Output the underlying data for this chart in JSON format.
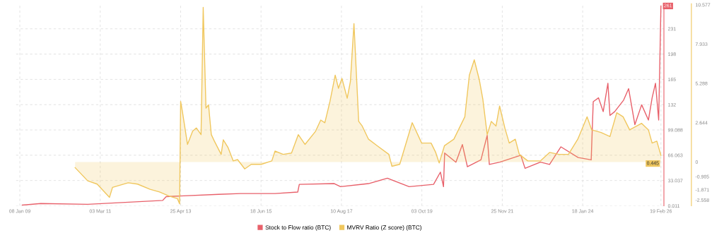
{
  "chart_data": {
    "type": "line",
    "xlim": [
      "2008-12-01",
      "2026-03-20"
    ],
    "xticks": [
      {
        "value": "2009-01-08",
        "label": "08 Jan 09"
      },
      {
        "value": "2011-03-03",
        "label": "03 Mar 11"
      },
      {
        "value": "2013-04-25",
        "label": "25 Apr 13"
      },
      {
        "value": "2015-06-18",
        "label": "18 Jun 15"
      },
      {
        "value": "2017-08-10",
        "label": "10 Aug 17"
      },
      {
        "value": "2019-10-03",
        "label": "03 Oct 19"
      },
      {
        "value": "2021-11-25",
        "label": "25 Nov 21"
      },
      {
        "value": "2024-01-18",
        "label": "18 Jan 24"
      },
      {
        "value": "2026-02-19",
        "label": "19 Feb 26"
      }
    ],
    "ylim": [
      0.011,
      264
    ],
    "yticks": [
      0.011,
      33.037,
      66.063,
      99.088,
      {
        "value": 132.114,
        "label": "132"
      },
      {
        "value": 165.14,
        "label": "165"
      },
      {
        "value": 198.166,
        "label": "198"
      },
      {
        "value": 231.191,
        "label": "231"
      }
    ],
    "y2lim": [
      -2.95,
      10.65
    ],
    "y2ticks": [
      -2.558,
      -1.871,
      -0.985,
      0,
      2.644,
      5.288,
      7.933,
      10.577
    ],
    "grid": true,
    "legend": "bottom",
    "series": [
      {
        "name": "Stock to Flow ratio (BTC)",
        "color": "#e8606a",
        "x": [
          "2009-02-01",
          "2009-08-01",
          "2010-11-01",
          "2012-11-01",
          "2012-12-05",
          "2014-05-01",
          "2014-12-01",
          "2015-11-01",
          "2016-06-10",
          "2016-06-25",
          "2017-06-01",
          "2017-08-01",
          "2018-05-01",
          "2018-11-01",
          "2019-06-01",
          "2020-01-25",
          "2020-04-01",
          "2020-05-01",
          "2020-05-12",
          "2020-08-30",
          "2020-11-01",
          "2020-12-20",
          "2021-05-01",
          "2021-07-01",
          "2021-07-22",
          "2021-11-01",
          "2022-05-25",
          "2022-07-05",
          "2022-12-01",
          "2023-03-01",
          "2023-06-20",
          "2023-12-05",
          "2024-04-10",
          "2024-04-30",
          "2024-06-20",
          "2024-08-05",
          "2024-09-20",
          "2024-10-10",
          "2024-11-25",
          "2025-02-20",
          "2025-04-10",
          "2025-06-10",
          "2025-08-15",
          "2025-10-20",
          "2025-11-25",
          "2025-12-28",
          "2026-01-28",
          "2026-02-19"
        ],
        "values": [
          1,
          3,
          2,
          7,
          12,
          15,
          16,
          16,
          18,
          28,
          29,
          25,
          29,
          36,
          25,
          28,
          44,
          25,
          69,
          57,
          80,
          51,
          60,
          92,
          54,
          57,
          66,
          49,
          57,
          54,
          77,
          63,
          60,
          136,
          141,
          123,
          160,
          118,
          123,
          138,
          153,
          106,
          132,
          112,
          141,
          160,
          112,
          261
        ],
        "value_labels": [
          null,
          null,
          null,
          null,
          null,
          null,
          null,
          null,
          null,
          null,
          null,
          null,
          null,
          null,
          null,
          null,
          null,
          null,
          null,
          null,
          null,
          null,
          null,
          null,
          null,
          null,
          null,
          null,
          null,
          null,
          null,
          null,
          null,
          null,
          null,
          null,
          null,
          null,
          null,
          null,
          null,
          null,
          null,
          null,
          null,
          null,
          null,
          "261"
        ]
      },
      {
        "name": "MVRV Ratio (Z score) (BTC)",
        "type": "area",
        "axis": "y2",
        "color": "#f0c75e",
        "x": [
          "2010-07-01",
          "2010-11-01",
          "2011-02-01",
          "2011-06-01",
          "2011-07-01",
          "2011-12-01",
          "2012-03-01",
          "2012-07-01",
          "2012-10-01",
          "2013-01-01",
          "2013-03-25",
          "2013-04-15",
          "2013-04-25",
          "2013-05-12",
          "2013-07-01",
          "2013-08-20",
          "2013-09-25",
          "2013-11-10",
          "2013-12-01",
          "2013-12-28",
          "2014-01-22",
          "2014-02-18",
          "2014-03-20",
          "2014-05-25",
          "2014-06-15",
          "2014-08-01",
          "2014-09-20",
          "2014-11-01",
          "2015-01-10",
          "2015-03-15",
          "2015-06-20",
          "2015-10-01",
          "2015-11-01",
          "2016-01-20",
          "2016-04-10",
          "2016-06-15",
          "2016-08-20",
          "2016-12-01",
          "2017-01-20",
          "2017-03-01",
          "2017-04-20",
          "2017-06-10",
          "2017-07-12",
          "2017-08-15",
          "2017-10-05",
          "2017-11-05",
          "2017-12-10",
          "2018-01-25",
          "2018-02-28",
          "2018-05-01",
          "2018-07-25",
          "2018-11-15",
          "2018-12-15",
          "2019-03-01",
          "2019-07-01",
          "2019-10-01",
          "2020-01-01",
          "2020-02-15",
          "2020-03-20",
          "2020-05-10",
          "2020-08-10",
          "2020-11-25",
          "2021-01-08",
          "2021-02-25",
          "2021-04-15",
          "2021-05-20",
          "2021-07-01",
          "2021-08-10",
          "2021-09-25",
          "2021-10-30",
          "2021-12-20",
          "2022-02-01",
          "2022-04-01",
          "2022-05-10",
          "2022-08-01",
          "2022-12-01",
          "2023-03-01",
          "2023-06-01",
          "2023-09-01",
          "2023-12-01",
          "2024-03-01",
          "2024-04-15",
          "2024-07-15",
          "2024-10-10",
          "2024-12-15",
          "2025-02-15",
          "2025-04-20",
          "2025-08-15",
          "2025-10-20",
          "2025-11-25",
          "2026-01-10",
          "2026-02-19"
        ],
        "values": [
          -0.38,
          -1.27,
          -1.49,
          -2.38,
          -1.71,
          -1.4,
          -1.49,
          -1.84,
          -2.02,
          -2.29,
          -2.47,
          -2.82,
          4.07,
          3.4,
          1.18,
          2.07,
          2.29,
          1.84,
          10.4,
          3.62,
          3.84,
          1.84,
          1.4,
          0.51,
          1.49,
          0.96,
          0.07,
          0.16,
          -0.47,
          -0.16,
          -0.16,
          0.07,
          0.73,
          0.51,
          0.6,
          1.84,
          1.18,
          2.07,
          2.82,
          2.64,
          4.07,
          5.84,
          4.96,
          5.62,
          4.29,
          5.4,
          9.31,
          2.73,
          2.42,
          1.53,
          1.09,
          0.51,
          -0.29,
          -0.16,
          2.64,
          1.27,
          1.27,
          0.64,
          -0.07,
          1.09,
          1.53,
          3.04,
          5.84,
          6.87,
          5.53,
          4.2,
          1.84,
          2.73,
          2.42,
          3.76,
          2.29,
          1.27,
          1.53,
          0.51,
          0.07,
          0.07,
          0.64,
          0.51,
          0.51,
          1.53,
          3.04,
          2.16,
          1.98,
          1.71,
          3.31,
          3.04,
          2.16,
          2.6,
          2.16,
          1.27,
          1.4,
          0.445
        ],
        "value_labels": [
          null,
          null,
          null,
          null,
          null,
          null,
          null,
          null,
          null,
          null,
          null,
          null,
          null,
          null,
          null,
          null,
          null,
          null,
          null,
          null,
          null,
          null,
          null,
          null,
          null,
          null,
          null,
          null,
          null,
          null,
          null,
          null,
          null,
          null,
          null,
          null,
          null,
          null,
          null,
          null,
          null,
          null,
          null,
          null,
          null,
          null,
          null,
          null,
          null,
          null,
          null,
          null,
          null,
          null,
          null,
          null,
          null,
          null,
          null,
          null,
          null,
          null,
          null,
          null,
          null,
          null,
          null,
          null,
          null,
          null,
          null,
          null,
          null,
          null,
          null,
          null,
          null,
          null,
          null,
          null,
          null,
          null,
          null,
          null,
          null,
          null,
          null,
          null,
          null,
          null,
          null,
          "0.445"
        ]
      }
    ]
  }
}
